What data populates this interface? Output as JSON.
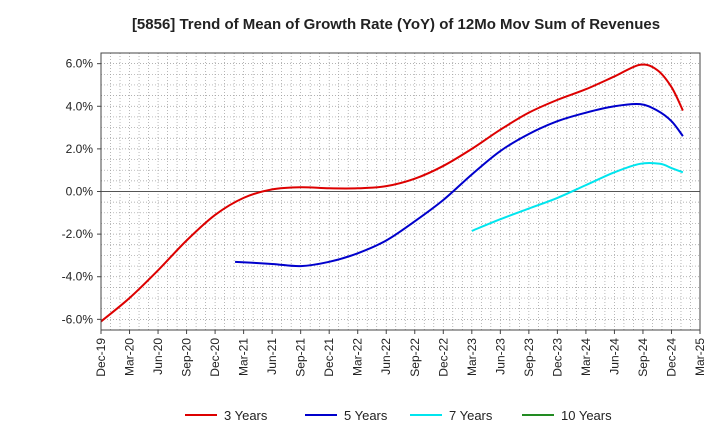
{
  "chart_data": {
    "type": "line",
    "title": "[5856]  Trend of Mean of Growth Rate (YoY) of 12Mo Mov Sum of Revenues",
    "xlabel": "",
    "ylabel": "",
    "ylim": [
      -6.5,
      6.5
    ],
    "y_ticks": [
      -6,
      -4,
      -2,
      0,
      2,
      4,
      6
    ],
    "y_tick_labels": [
      "-6.0%",
      "-4.0%",
      "-2.0%",
      "0.0%",
      "2.0%",
      "4.0%",
      "6.0%"
    ],
    "x_tick_labels": [
      "Dec-19",
      "Mar-20",
      "Jun-20",
      "Sep-20",
      "Dec-20",
      "Mar-21",
      "Jun-21",
      "Sep-21",
      "Dec-21",
      "Mar-22",
      "Jun-22",
      "Sep-22",
      "Dec-22",
      "Mar-23",
      "Jun-23",
      "Sep-23",
      "Dec-23",
      "Mar-24",
      "Jun-24",
      "Sep-24",
      "Dec-24",
      "Mar-25"
    ],
    "grid": true,
    "legend_position": "bottom",
    "series": [
      {
        "name": "3 Years",
        "color": "#dd0000",
        "points": [
          [
            0,
            -6.1
          ],
          [
            1,
            -5.0
          ],
          [
            2,
            -3.7
          ],
          [
            3,
            -2.3
          ],
          [
            4,
            -1.1
          ],
          [
            5,
            -0.3
          ],
          [
            6,
            0.1
          ],
          [
            7,
            0.2
          ],
          [
            8,
            0.15
          ],
          [
            9,
            0.15
          ],
          [
            10,
            0.25
          ],
          [
            11,
            0.6
          ],
          [
            12,
            1.2
          ],
          [
            13,
            2.0
          ],
          [
            14,
            2.9
          ],
          [
            15,
            3.7
          ],
          [
            16,
            4.3
          ],
          [
            17,
            4.8
          ],
          [
            18,
            5.4
          ],
          [
            18.9,
            5.95
          ],
          [
            19.5,
            5.7
          ],
          [
            20,
            4.9
          ],
          [
            20.4,
            3.8
          ]
        ]
      },
      {
        "name": "5 Years",
        "color": "#0000cc",
        "points": [
          [
            4.7,
            -3.3
          ],
          [
            6,
            -3.4
          ],
          [
            7,
            -3.5
          ],
          [
            8,
            -3.3
          ],
          [
            9,
            -2.9
          ],
          [
            10,
            -2.3
          ],
          [
            11,
            -1.4
          ],
          [
            12,
            -0.4
          ],
          [
            13,
            0.8
          ],
          [
            14,
            1.9
          ],
          [
            15,
            2.7
          ],
          [
            16,
            3.3
          ],
          [
            17,
            3.7
          ],
          [
            18,
            4.0
          ],
          [
            18.9,
            4.1
          ],
          [
            19.5,
            3.8
          ],
          [
            20,
            3.3
          ],
          [
            20.4,
            2.6
          ]
        ]
      },
      {
        "name": "7 Years",
        "color": "#00e5ee",
        "points": [
          [
            13,
            -1.85
          ],
          [
            14,
            -1.3
          ],
          [
            15,
            -0.8
          ],
          [
            16,
            -0.3
          ],
          [
            17,
            0.3
          ],
          [
            18,
            0.9
          ],
          [
            18.9,
            1.3
          ],
          [
            19.6,
            1.3
          ],
          [
            20,
            1.1
          ],
          [
            20.4,
            0.9
          ]
        ]
      },
      {
        "name": "10 Years",
        "color": "#228b22",
        "points": []
      }
    ]
  }
}
